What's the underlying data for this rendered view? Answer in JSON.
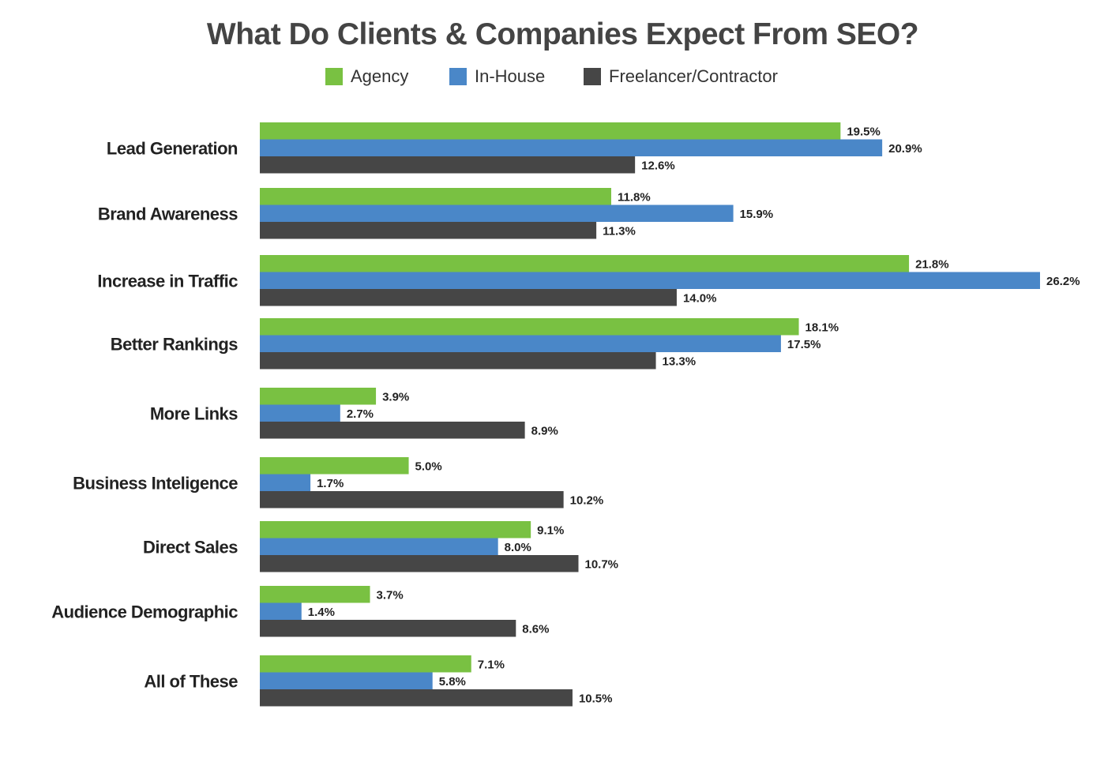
{
  "chart_data": {
    "type": "bar",
    "orientation": "horizontal",
    "title": "What Do Clients & Companies Expect From SEO?",
    "categories": [
      "Lead Generation",
      "Brand Awareness",
      "Increase in Traffic",
      "Better Rankings",
      "More Links",
      "Business Inteligence",
      "Direct Sales",
      "Audience Demographic",
      "All of These"
    ],
    "series": [
      {
        "name": "Agency",
        "color": "#79c142",
        "values": [
          19.5,
          11.8,
          21.8,
          18.1,
          3.9,
          5.0,
          9.1,
          3.7,
          7.1
        ],
        "labels": [
          "19.5%",
          "11.8%",
          "21.8%",
          "18.1%",
          "3.9%",
          "5.0%",
          "9.1%",
          "3.7%",
          "7.1%"
        ]
      },
      {
        "name": "In-House",
        "color": "#4a87c8",
        "values": [
          20.9,
          15.9,
          26.2,
          17.5,
          2.7,
          1.7,
          8.0,
          1.4,
          5.8
        ],
        "labels": [
          "20.9%",
          "15.9%",
          "26.2%",
          "17.5%",
          "2.7%",
          "1.7%",
          "8.0%",
          "1.4%",
          "5.8%"
        ]
      },
      {
        "name": "Freelancer/Contractor",
        "color": "#464646",
        "values": [
          12.6,
          11.3,
          14.0,
          13.3,
          8.9,
          10.2,
          10.7,
          8.6,
          10.5
        ],
        "labels": [
          "12.6%",
          "11.3%",
          "14.0%",
          "13.3%",
          "8.9%",
          "10.2%",
          "10.7%",
          "8.6%",
          "10.5%"
        ]
      }
    ],
    "xlim": [
      0,
      26.2
    ],
    "grid": false,
    "legend_position": "top"
  }
}
